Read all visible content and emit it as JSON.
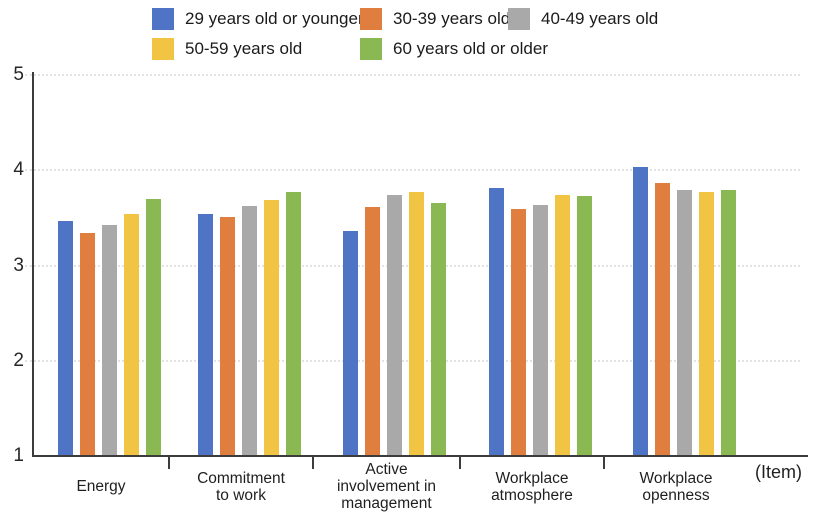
{
  "chart_data": {
    "type": "bar",
    "title": "",
    "xlabel": "(Item)",
    "ylabel": "",
    "ylim": [
      1,
      5
    ],
    "yticks": [
      1,
      2,
      3,
      4,
      5
    ],
    "grid": "horizontal-dotted",
    "legend_position": "top",
    "categories": [
      "Energy",
      "Commitment\nto work",
      "Active\ninvolvement in\nmanagement",
      "Workplace\natmosphere",
      "Workplace\nopenness"
    ],
    "series": [
      {
        "name": "29 years old or younger",
        "color": "#4F74C6",
        "values": [
          3.47,
          3.54,
          3.36,
          3.81,
          4.03
        ]
      },
      {
        "name": "30-39 years old",
        "color": "#DF7E3E",
        "values": [
          3.34,
          3.51,
          3.61,
          3.59,
          3.87
        ]
      },
      {
        "name": "40-49 years old",
        "color": "#A9A9A9",
        "values": [
          3.43,
          3.62,
          3.74,
          3.64,
          3.79
        ]
      },
      {
        "name": "50-59 years old",
        "color": "#F2C444",
        "values": [
          3.54,
          3.69,
          3.77,
          3.74,
          3.77
        ]
      },
      {
        "name": "60 years old or older",
        "color": "#8AB954",
        "values": [
          3.7,
          3.77,
          3.66,
          3.73,
          3.79
        ]
      }
    ]
  },
  "colors": {
    "axis": "#3c3c3c",
    "gridline": "#e3e3e3",
    "text": "#1f1f1f",
    "background": "#ffffff"
  }
}
